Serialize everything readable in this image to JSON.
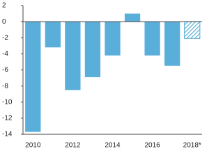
{
  "chart_data": {
    "type": "bar",
    "categories": [
      "2010",
      null,
      "2012",
      null,
      "2014",
      null,
      "2016",
      null,
      "2018*"
    ],
    "values": [
      -13.7,
      -3.2,
      -8.5,
      -6.9,
      -4.2,
      1.0,
      -4.2,
      -5.5,
      -2.1
    ],
    "color": "#5aafda",
    "hatched": [
      false,
      false,
      false,
      false,
      false,
      false,
      false,
      false,
      true
    ],
    "ylim": [
      -14,
      2
    ],
    "yticks": [
      2,
      0,
      -2,
      -4,
      -6,
      -8,
      -10,
      -12,
      -14
    ]
  }
}
